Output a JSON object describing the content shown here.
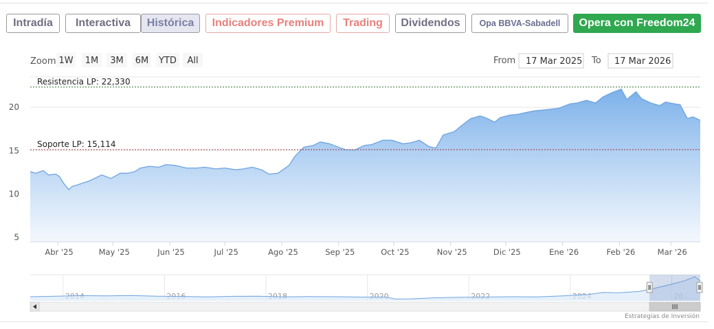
{
  "tabs": [
    {
      "label": "Intradía",
      "style": "normal"
    },
    {
      "label": "Interactiva",
      "style": "normal"
    },
    {
      "label": "Histórica",
      "style": "active"
    },
    {
      "label": "Indicadores Premium",
      "style": "red"
    },
    {
      "label": "Trading",
      "style": "red"
    },
    {
      "label": "Dividendos",
      "style": "normal"
    },
    {
      "label": "Opa BBVA-Sabadell",
      "style": "small"
    },
    {
      "label": "Opera con Freedom24",
      "style": "green"
    }
  ],
  "range_selector": {
    "zoom_label": "Zoom",
    "buttons": [
      "1W",
      "1M",
      "3M",
      "6M",
      "YTD",
      "All"
    ],
    "from_label": "From",
    "from_value": "17 Mar 2025",
    "to_label": "To",
    "to_value": "17 Mar 2026"
  },
  "credits": "Estrategias de Inversión",
  "colors": {
    "line": "#6ea3e0",
    "fill_top": "#7cb1ea",
    "fill_bottom": "#f2f7fd",
    "resistance": "#2e6b2e",
    "support": "#a0303a"
  },
  "chart_data": {
    "type": "area",
    "title": "",
    "xlabel": "",
    "ylabel": "",
    "x_tick_labels": [
      "Abr '25",
      "May '25",
      "Jun '25",
      "Jul '25",
      "Ago '25",
      "Sep '25",
      "Oct '25",
      "Nov '25",
      "Dic '25",
      "Ene '26",
      "Feb '26",
      "Mar '26"
    ],
    "y_ticks": [
      5,
      10,
      15,
      20
    ],
    "ylim": [
      4.5,
      23.5
    ],
    "xlim": [
      "2025-03-17",
      "2026-03-17"
    ],
    "grid": true,
    "plot_lines": [
      {
        "label": "Resistencia LP: 22,330",
        "value": 22.33,
        "style": "dashed"
      },
      {
        "label": "Soporte LP: 15,114",
        "value": 15.114,
        "style": "dashed"
      }
    ],
    "series": [
      {
        "x": [
          "2025-03-17",
          "2025-03-20",
          "2025-03-24",
          "2025-03-27",
          "2025-03-31",
          "2025-04-02",
          "2025-04-04",
          "2025-04-07",
          "2025-04-09",
          "2025-04-11",
          "2025-04-15",
          "2025-04-18",
          "2025-04-22",
          "2025-04-25",
          "2025-04-30",
          "2025-05-05",
          "2025-05-09",
          "2025-05-13",
          "2025-05-16",
          "2025-05-21",
          "2025-05-26",
          "2025-05-30",
          "2025-06-04",
          "2025-06-10",
          "2025-06-16",
          "2025-06-20",
          "2025-06-26",
          "2025-07-01",
          "2025-07-07",
          "2025-07-11",
          "2025-07-16",
          "2025-07-21",
          "2025-07-25",
          "2025-07-30",
          "2025-08-05",
          "2025-08-08",
          "2025-08-13",
          "2025-08-18",
          "2025-08-22",
          "2025-08-27",
          "2025-09-01",
          "2025-09-05",
          "2025-09-10",
          "2025-09-15",
          "2025-09-19",
          "2025-09-25",
          "2025-09-30",
          "2025-10-06",
          "2025-10-10",
          "2025-10-15",
          "2025-10-20",
          "2025-10-24",
          "2025-10-28",
          "2025-11-03",
          "2025-11-07",
          "2025-11-12",
          "2025-11-17",
          "2025-11-20",
          "2025-11-25",
          "2025-11-28",
          "2025-12-03",
          "2025-12-08",
          "2025-12-12",
          "2025-12-17",
          "2025-12-22",
          "2025-12-30",
          "2026-01-05",
          "2026-01-09",
          "2026-01-14",
          "2026-01-19",
          "2026-01-23",
          "2026-01-28",
          "2026-02-02",
          "2026-02-05",
          "2026-02-10",
          "2026-02-13",
          "2026-02-18",
          "2026-02-23",
          "2026-02-26",
          "2026-03-03",
          "2026-03-06",
          "2026-03-10",
          "2026-03-13",
          "2026-03-17"
        ],
        "y": [
          12.6,
          12.4,
          12.7,
          12.2,
          12.3,
          12.0,
          11.3,
          10.5,
          10.9,
          11.0,
          11.3,
          11.5,
          11.9,
          12.2,
          11.8,
          12.4,
          12.4,
          12.6,
          13.0,
          13.2,
          13.1,
          13.4,
          13.3,
          13.0,
          13.0,
          13.1,
          12.9,
          13.0,
          12.8,
          12.9,
          13.1,
          12.8,
          12.3,
          12.4,
          13.3,
          14.3,
          15.4,
          15.6,
          16.0,
          15.8,
          15.4,
          15.1,
          15.1,
          15.6,
          15.7,
          16.2,
          16.2,
          15.8,
          15.9,
          16.2,
          15.5,
          15.3,
          16.8,
          17.2,
          17.9,
          18.7,
          19.0,
          18.8,
          18.3,
          18.8,
          19.1,
          19.2,
          19.4,
          19.6,
          19.7,
          19.9,
          20.4,
          20.5,
          20.8,
          20.5,
          21.2,
          21.7,
          22.1,
          20.9,
          21.8,
          21.0,
          20.5,
          20.2,
          20.6,
          20.4,
          20.3,
          18.7,
          18.9,
          18.5
        ]
      }
    ],
    "navigator": {
      "x_tick_labels": [
        "2014",
        "2016",
        "2018",
        "2020",
        "2022",
        "2024",
        "20..."
      ],
      "x_range": [
        2013,
        2026.21
      ],
      "selected_range": [
        2025.21,
        2026.21
      ],
      "series": [
        {
          "x": [
            2013.0,
            2013.5,
            2014.0,
            2014.5,
            2015.0,
            2015.5,
            2016.0,
            2016.5,
            2017.0,
            2017.5,
            2018.0,
            2018.5,
            2019.0,
            2019.5,
            2020.0,
            2020.2,
            2020.5,
            2021.0,
            2021.5,
            2022.0,
            2022.5,
            2023.0,
            2023.5,
            2024.0,
            2024.3,
            2024.6,
            2025.0,
            2025.3,
            2025.6,
            2025.9,
            2026.1,
            2026.21
          ],
          "y": [
            6.6,
            7.0,
            7.4,
            7.2,
            7.5,
            7.0,
            6.8,
            6.5,
            6.9,
            7.0,
            6.5,
            6.7,
            6.6,
            6.3,
            6.3,
            4.9,
            5.0,
            5.8,
            6.2,
            6.3,
            6.6,
            6.4,
            7.2,
            8.2,
            9.8,
            9.5,
            10.5,
            12.8,
            15.5,
            18.5,
            21.5,
            18.5
          ]
        }
      ]
    }
  }
}
